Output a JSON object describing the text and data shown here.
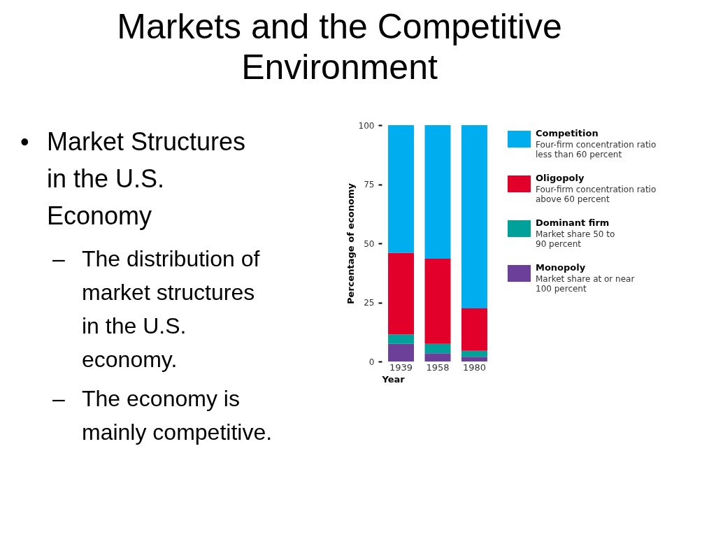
{
  "chart_data": {
    "type": "bar",
    "title": "Markets and the Competitive Environment",
    "xlabel": "Year",
    "ylabel": "Percentage of economy",
    "categories": [
      "1939",
      "1958",
      "1980"
    ],
    "stacked": true,
    "series": [
      {
        "name": "Monopoly",
        "color": "#6c3f98",
        "values": [
          7.5,
          3.5,
          2
        ]
      },
      {
        "name": "Dominant firm",
        "color": "#00a19a",
        "values": [
          4,
          4,
          2.5
        ]
      },
      {
        "name": "Oligopoly",
        "color": "#e2002a",
        "values": [
          34.5,
          36,
          18
        ]
      },
      {
        "name": "Competition",
        "color": "#00aeef",
        "values": [
          54,
          56.5,
          77.5
        ]
      }
    ],
    "ylim": [
      0,
      100
    ],
    "yticks": [
      0,
      25,
      50,
      75,
      100
    ],
    "grid": false,
    "legend": "right",
    "annotations": [
      "Market share at or near\n100 percent",
      "Market share 50 to\n90 percent",
      "Four-firm concentration ratio\nabove 60 percent",
      "Four-firm concentration ratio\nless than 60 percent",
      "• Market Structures in the U.S. Economy",
      "– The distribution of market structures in the U.S. economy.",
      "– The economy is mainly competitive."
    ]
  }
}
